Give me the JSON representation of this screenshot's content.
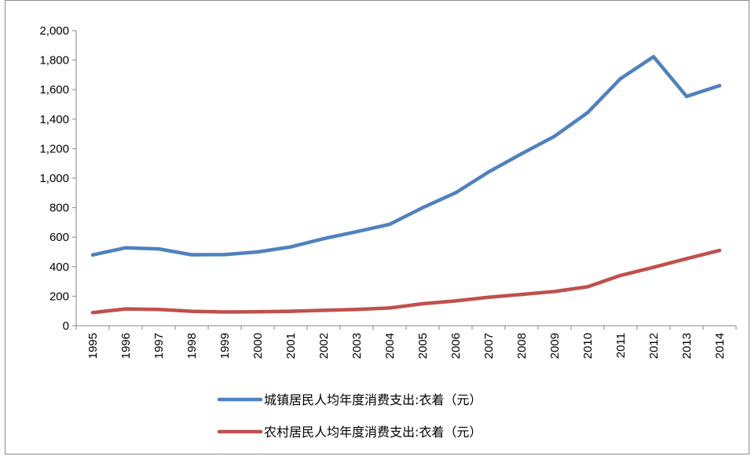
{
  "chart_data": {
    "type": "line",
    "title": "",
    "xlabel": "",
    "ylabel": "",
    "x": [
      "1995",
      "1996",
      "1997",
      "1998",
      "1999",
      "2000",
      "2001",
      "2002",
      "2003",
      "2004",
      "2005",
      "2006",
      "2007",
      "2008",
      "2009",
      "2010",
      "2011",
      "2012",
      "2013",
      "2014"
    ],
    "ylim": [
      0,
      2000
    ],
    "yticks": [
      0,
      200,
      400,
      600,
      800,
      1000,
      1200,
      1400,
      1600,
      1800,
      2000
    ],
    "ytick_labels": [
      "0",
      "200",
      "400",
      "600",
      "800",
      "1,000",
      "1,200",
      "1,400",
      "1,600",
      "1,800",
      "2,000"
    ],
    "grid": false,
    "legend_position": "bottom",
    "series": [
      {
        "name": "城镇居民人均年度消费支出:衣着（元）",
        "color": "#4F81BD",
        "values": [
          480,
          528,
          521,
          481,
          482,
          500,
          534,
          590,
          637,
          687,
          800,
          901,
          1042,
          1166,
          1284,
          1444,
          1675,
          1823,
          1554,
          1627
        ]
      },
      {
        "name": "农村居民人均年度消费支出:衣着（元）",
        "color": "#C0504D",
        "values": [
          89,
          114,
          110,
          98,
          93,
          94,
          98,
          104,
          110,
          120,
          149,
          168,
          193,
          212,
          232,
          264,
          341,
          396,
          454,
          510
        ]
      }
    ]
  }
}
